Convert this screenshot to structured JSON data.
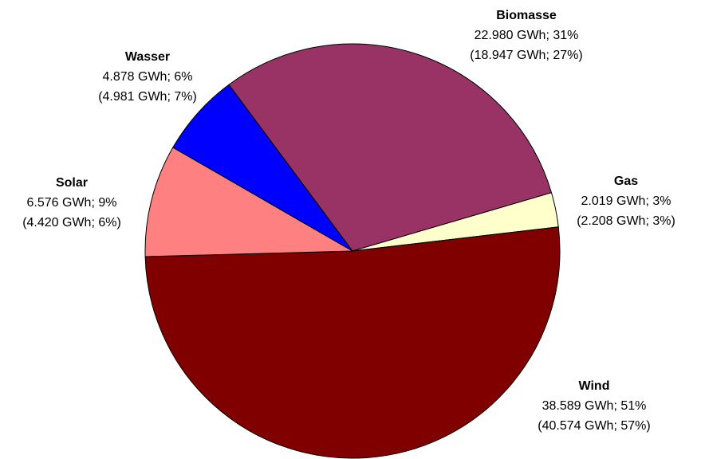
{
  "chart_data": {
    "type": "pie",
    "categories": [
      "Biomasse",
      "Gas",
      "Wind",
      "Solar",
      "Wasser"
    ],
    "values": [
      22980,
      2019,
      38589,
      6576,
      4878
    ],
    "value_labels": [
      "22.980 GWh; 31%",
      "2.019 GWh; 3%",
      "38.589 GWh; 51%",
      "6.576 GWh; 9%",
      "4.878 GWh; 6%"
    ],
    "prior_value_labels": [
      "(18.947 GWh; 27%)",
      "(2.208 GWh; 3%)",
      "(40.574 GWh; 57%)",
      "(4.420 GWh; 6%)",
      "(4.981 GWh; 7%)"
    ],
    "colors": [
      "#993366",
      "#ffffcc",
      "#800000",
      "#ff8080",
      "#0000ff"
    ]
  }
}
